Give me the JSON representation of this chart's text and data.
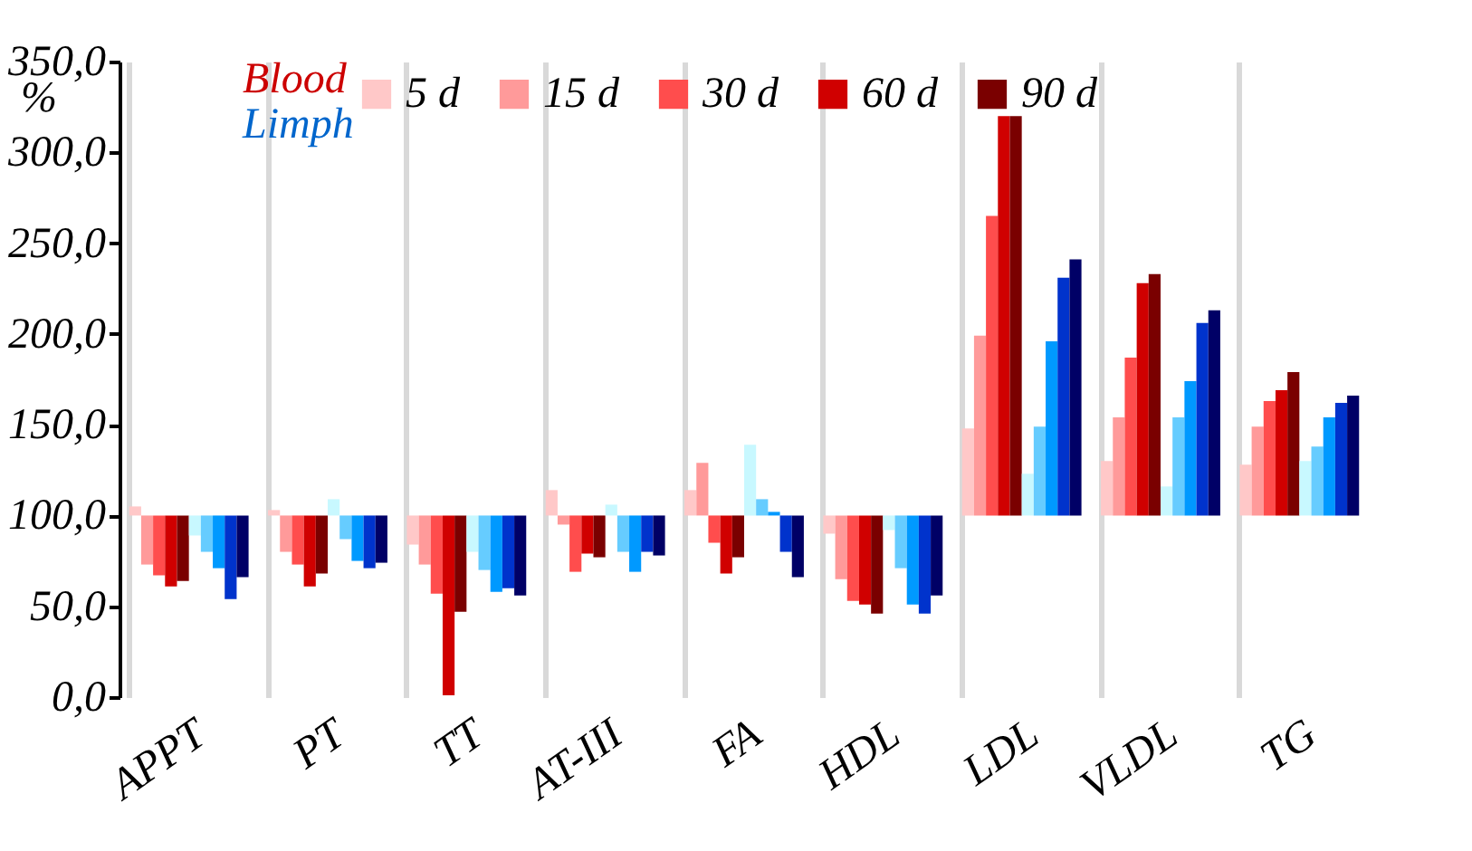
{
  "chart_data": {
    "type": "bar",
    "ylabel": "%",
    "categories": [
      "APPT",
      "PT",
      "TT",
      "AT-III",
      "FA",
      "HDL",
      "LDL",
      "VLDL",
      "TG"
    ],
    "series": [
      {
        "name": "5 d",
        "color": "#ffc8c8",
        "base": [
          100,
          100,
          100,
          100,
          100,
          100,
          100,
          100,
          100
        ],
        "values": [
          5,
          3,
          -16,
          14,
          14,
          -10,
          48,
          30,
          28
        ]
      },
      {
        "name": "15 d",
        "color": "#ff9a9a",
        "base": [
          100,
          100,
          100,
          100,
          100,
          100,
          100,
          100,
          100
        ],
        "values": [
          -27,
          -20,
          -27,
          -5,
          29,
          -35,
          99,
          54,
          49
        ]
      },
      {
        "name": "30 d",
        "color": "#ff4d4d",
        "base": [
          100,
          100,
          100,
          100,
          100,
          100,
          100,
          100,
          100
        ],
        "values": [
          -33,
          -27,
          -43,
          -31,
          -15,
          -47,
          165,
          87,
          63
        ]
      },
      {
        "name": "60 d",
        "color": "#d00000",
        "base": [
          100,
          100,
          100,
          100,
          100,
          100,
          100,
          100,
          100
        ],
        "values": [
          -39,
          -39,
          -99,
          -21,
          -32,
          -49,
          220,
          128,
          69
        ]
      },
      {
        "name": "90 d",
        "color": "#7a0000",
        "base": [
          100,
          100,
          100,
          100,
          100,
          100,
          100,
          100,
          100
        ],
        "values": [
          -36,
          -32,
          -53,
          -23,
          -23,
          -54,
          220,
          133,
          79
        ]
      },
      {
        "color": "#c8f8ff",
        "base": [
          100,
          100,
          100,
          100,
          100,
          100,
          100,
          100,
          100
        ],
        "values": [
          -11,
          9,
          -20,
          6,
          39,
          -8,
          23,
          16,
          30
        ]
      },
      {
        "color": "#66ccff",
        "base": [
          100,
          100,
          100,
          100,
          100,
          100,
          100,
          100,
          100
        ],
        "values": [
          -20,
          -13,
          -30,
          -20,
          9,
          -29,
          49,
          54,
          38
        ]
      },
      {
        "color": "#0099ff",
        "base": [
          100,
          100,
          100,
          100,
          100,
          100,
          100,
          100,
          100
        ],
        "values": [
          -29,
          -25,
          -42,
          -31,
          2,
          -49,
          96,
          74,
          54
        ]
      },
      {
        "color": "#0033cc",
        "base": [
          100,
          100,
          100,
          100,
          100,
          100,
          100,
          100,
          100
        ],
        "values": [
          -46,
          -29,
          -40,
          -20,
          -20,
          -54,
          131,
          106,
          62
        ]
      },
      {
        "color": "#000066",
        "base": [
          100,
          100,
          100,
          100,
          100,
          100,
          100,
          100,
          100
        ],
        "values": [
          -34,
          -26,
          -44,
          -22,
          -34,
          -44,
          141,
          113,
          66
        ]
      }
    ],
    "ylim": [
      0,
      350
    ],
    "yticks": [
      {
        "value": 0,
        "label": "0,0"
      },
      {
        "value": 50,
        "label": "50,0"
      },
      {
        "value": 100,
        "label": "100,0"
      },
      {
        "value": 150,
        "label": "150,0"
      },
      {
        "value": 200,
        "label": "200,0"
      },
      {
        "value": 250,
        "label": "250,0"
      },
      {
        "value": 300,
        "label": "300,0"
      },
      {
        "value": 350,
        "label": "350,0"
      }
    ],
    "grid": "x",
    "legend": "top",
    "annotations": [
      "Blood",
      "Limph"
    ]
  }
}
